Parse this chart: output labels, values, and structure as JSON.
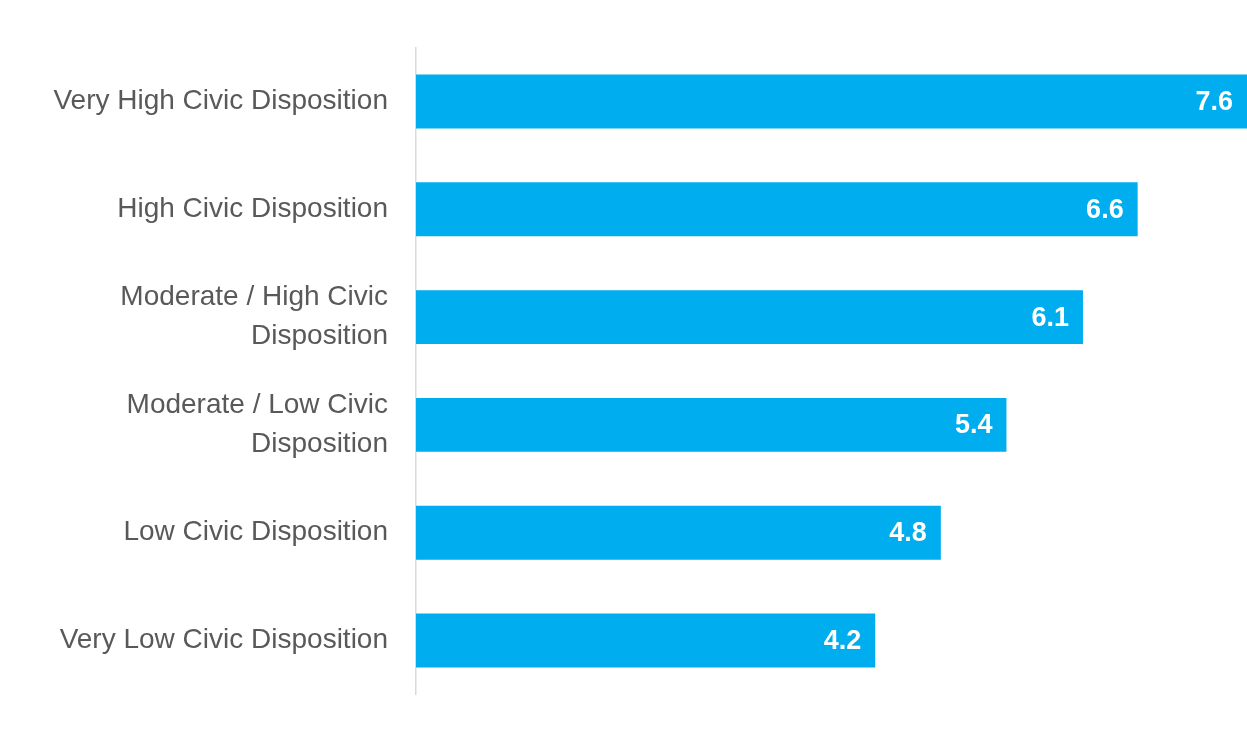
{
  "chart_data": {
    "type": "bar",
    "orientation": "horizontal",
    "categories": [
      "Very High Civic Disposition",
      "High Civic Disposition",
      "Moderate / High Civic Disposition",
      "Moderate / Low Civic Disposition",
      "Low Civic Disposition",
      "Very Low Civic Disposition"
    ],
    "values": [
      7.6,
      6.6,
      6.1,
      5.4,
      4.8,
      4.2
    ],
    "color": "#00adef",
    "data_labels": true
  }
}
